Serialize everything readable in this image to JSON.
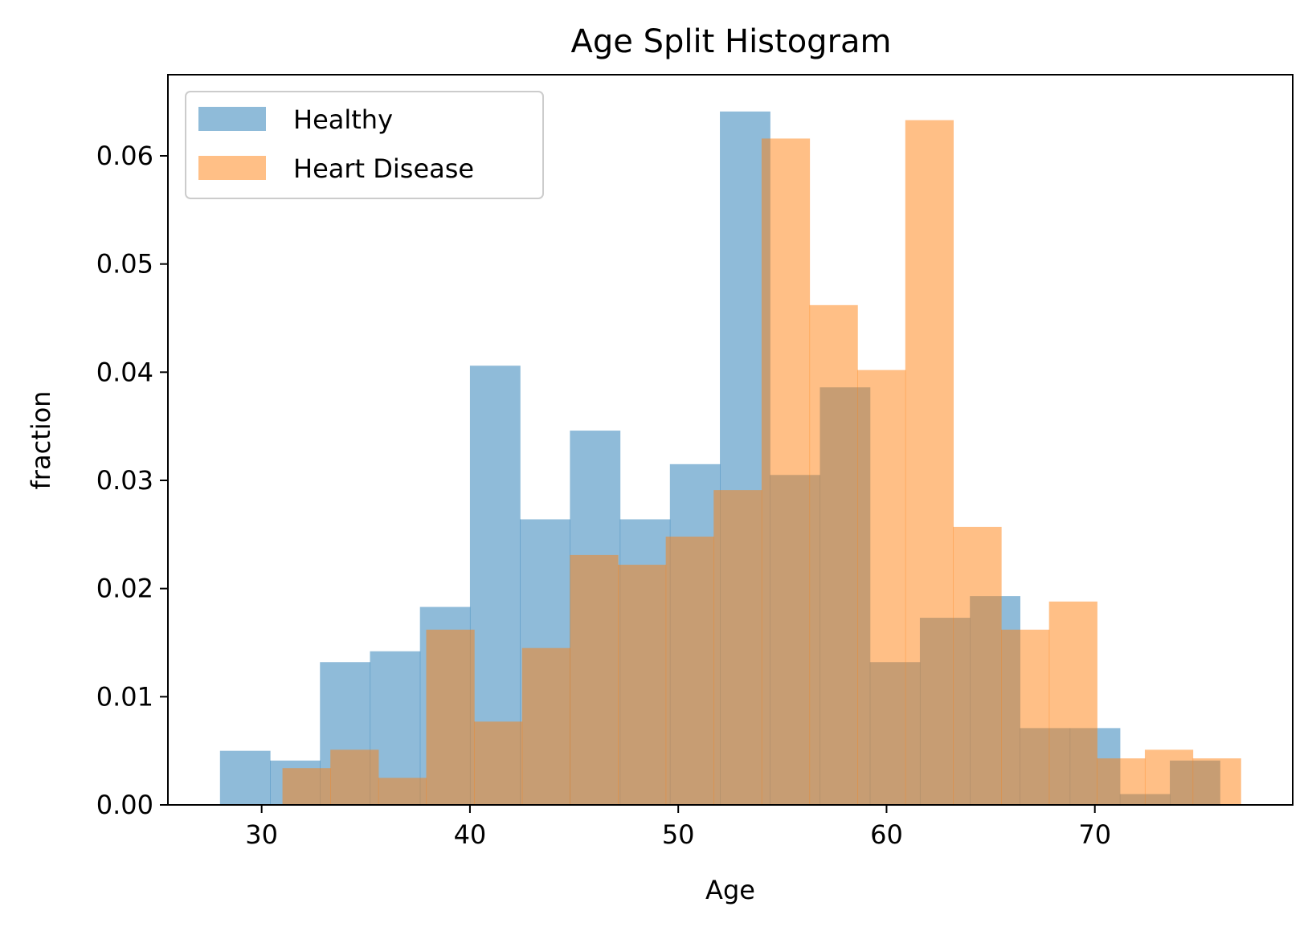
{
  "chart_data": {
    "type": "bar",
    "title": "Age Split Histogram",
    "xlabel": "Age",
    "ylabel": "fraction",
    "xlim": [
      25.5,
      79.5
    ],
    "ylim": [
      0,
      0.0675
    ],
    "xticks": [
      30,
      40,
      50,
      60,
      70
    ],
    "yticks": [
      0.0,
      0.01,
      0.02,
      0.03,
      0.04,
      0.05,
      0.06
    ],
    "ytick_labels": [
      "0.00",
      "0.01",
      "0.02",
      "0.03",
      "0.04",
      "0.05",
      "0.06"
    ],
    "grid": false,
    "legend": "upper-left",
    "series": [
      {
        "name": "Healthy",
        "color": "#1f77b4",
        "alpha": 0.5,
        "bin_edges": [
          28,
          30.4,
          32.8,
          35.2,
          37.6,
          40,
          42.4,
          44.8,
          47.2,
          49.6,
          52,
          54.4,
          56.8,
          59.2,
          61.6,
          64,
          66.4,
          68.8,
          71.2,
          73.6,
          76
        ],
        "values": [
          0.005,
          0.0041,
          0.0132,
          0.0142,
          0.0183,
          0.0406,
          0.0264,
          0.0346,
          0.0264,
          0.0315,
          0.0641,
          0.0305,
          0.0386,
          0.0132,
          0.0173,
          0.0193,
          0.0071,
          0.0071,
          0.001,
          0.0041
        ]
      },
      {
        "name": "Heart Disease",
        "color": "#ff7f0e",
        "alpha": 0.5,
        "bin_edges": [
          31,
          33.3,
          35.6,
          37.9,
          40.2,
          42.5,
          44.8,
          47.1,
          49.4,
          51.7,
          54,
          56.3,
          58.6,
          60.9,
          63.2,
          65.5,
          67.8,
          70.1,
          72.4,
          74.7,
          77
        ],
        "values": [
          0.0034,
          0.0051,
          0.0025,
          0.0162,
          0.0077,
          0.0145,
          0.0231,
          0.0222,
          0.0248,
          0.0291,
          0.0616,
          0.0462,
          0.0402,
          0.0633,
          0.0257,
          0.0162,
          0.0188,
          0.0043,
          0.0051,
          0.0043
        ]
      }
    ]
  }
}
